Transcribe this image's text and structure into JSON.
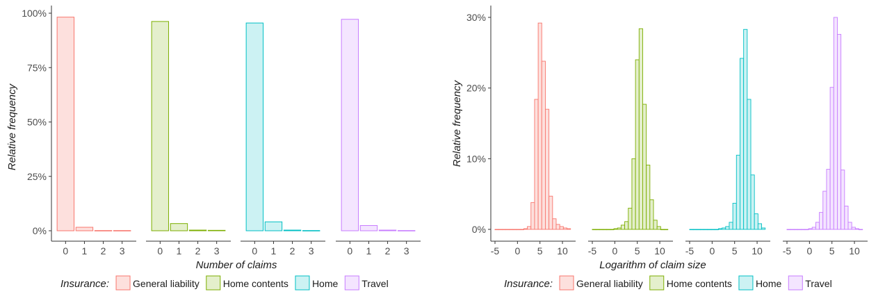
{
  "legend": {
    "title": "Insurance:",
    "items": [
      {
        "label": "General liability",
        "stroke": "#F8766D",
        "fill": "#FDE0DD"
      },
      {
        "label": "Home contents",
        "stroke": "#7CAE00",
        "fill": "#E4EFCC"
      },
      {
        "label": "Home",
        "stroke": "#00BFC4",
        "fill": "#CCF2F3"
      },
      {
        "label": "Travel",
        "stroke": "#C77CFF",
        "fill": "#F4E5FF"
      }
    ]
  },
  "chart_data": [
    {
      "type": "bar",
      "xlabel": "Number of claims",
      "ylabel": "Relative frequency",
      "ylim": [
        0,
        1
      ],
      "yticks": [
        0,
        0.25,
        0.5,
        0.75,
        1
      ],
      "ytick_labels": [
        "0%",
        "25%",
        "50%",
        "75%",
        "100%"
      ],
      "categories": [
        "0",
        "1",
        "2",
        "3"
      ],
      "grid": false,
      "legend_position": "bottom",
      "series": [
        {
          "name": "General liability",
          "values": [
            0.982,
            0.016,
            0.001,
            0.001
          ]
        },
        {
          "name": "Home contents",
          "values": [
            0.962,
            0.033,
            0.003,
            0.002
          ]
        },
        {
          "name": "Home",
          "values": [
            0.955,
            0.041,
            0.003,
            0.001
          ]
        },
        {
          "name": "Travel",
          "values": [
            0.972,
            0.024,
            0.003,
            0.001
          ]
        }
      ]
    },
    {
      "type": "bar",
      "subtype": "histogram",
      "xlabel": "Logarithm of claim size",
      "ylabel": "Relative frequency",
      "ylim": [
        0,
        0.3
      ],
      "yticks": [
        0,
        0.1,
        0.2,
        0.3
      ],
      "ytick_labels": [
        "0%",
        "10%",
        "20%",
        "30%"
      ],
      "xlim": [
        -5,
        12
      ],
      "xticks": [
        -5,
        0,
        5,
        10
      ],
      "xtick_labels": [
        "-5",
        "0",
        "5",
        "10"
      ],
      "bin_width": 0.8,
      "grid": false,
      "legend_position": "bottom",
      "series": [
        {
          "name": "General liability",
          "bins": [
            -5,
            -4.2,
            -3.4,
            -2.6,
            -1.8,
            -1,
            -0.2,
            0.6,
            1.4,
            2.2,
            3,
            3.8,
            4.6,
            5.4,
            6.2,
            7,
            7.8,
            8.6,
            9.4,
            10.2,
            11
          ],
          "values": [
            0,
            0,
            0,
            0,
            0,
            0,
            0,
            0,
            0.001,
            0.004,
            0.038,
            0.184,
            0.292,
            0.238,
            0.17,
            0.047,
            0.015,
            0.007,
            0.004,
            0.002,
            0.001
          ]
        },
        {
          "name": "Home contents",
          "bins": [
            -5,
            -4.2,
            -3.4,
            -2.6,
            -1.8,
            -1,
            -0.2,
            0.6,
            1.4,
            2.2,
            3,
            3.8,
            4.6,
            5.4,
            6.2,
            7,
            7.8,
            8.6,
            9.4,
            10.2,
            11
          ],
          "values": [
            0,
            0,
            0,
            0,
            0,
            0,
            0.001,
            0.002,
            0.006,
            0.011,
            0.03,
            0.1,
            0.24,
            0.284,
            0.177,
            0.091,
            0.042,
            0.013,
            0.004,
            0,
            0
          ]
        },
        {
          "name": "Home",
          "bins": [
            -5,
            -4.2,
            -3.4,
            -2.6,
            -1.8,
            -1,
            -0.2,
            0.6,
            1.4,
            2.2,
            3,
            3.8,
            4.6,
            5.4,
            6.2,
            7,
            7.8,
            8.6,
            9.4,
            10.2,
            11
          ],
          "values": [
            0,
            0,
            0,
            0,
            0,
            0,
            0,
            0,
            0.001,
            0.002,
            0.004,
            0.01,
            0.037,
            0.105,
            0.242,
            0.283,
            0.184,
            0.077,
            0.022,
            0.008,
            0.002
          ]
        },
        {
          "name": "Travel",
          "bins": [
            -5,
            -4.2,
            -3.4,
            -2.6,
            -1.8,
            -1,
            -0.2,
            0.6,
            1.4,
            2.2,
            3,
            3.8,
            4.6,
            5.4,
            6.2,
            7,
            7.8,
            8.6,
            9.4,
            10.2,
            11
          ],
          "values": [
            0,
            0,
            0,
            0,
            0,
            0,
            0.001,
            0.003,
            0.01,
            0.024,
            0.054,
            0.085,
            0.201,
            0.3,
            0.276,
            0.084,
            0.033,
            0.01,
            0.003,
            0.001,
            0
          ]
        }
      ]
    }
  ]
}
